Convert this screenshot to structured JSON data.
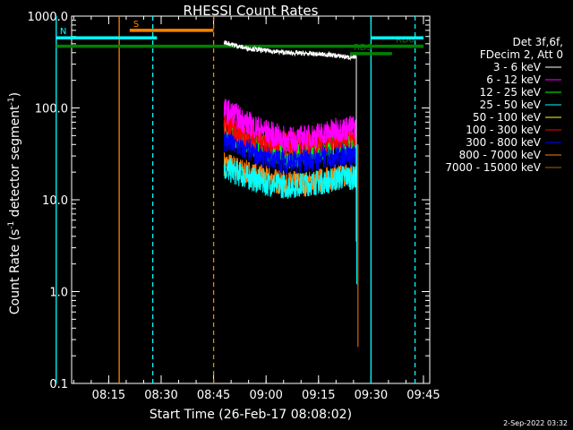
{
  "chart_data": {
    "type": "line",
    "title": "RHESSI Count Rates",
    "xlabel": "Start Time (26-Feb-17 08:08:02)",
    "ylabel_parts": [
      "Count Rate (s",
      "-1",
      " detector segment",
      "-1",
      ")"
    ],
    "ylabel": "Count Rate (s-1 detector segment-1)",
    "yscale": "log",
    "ylim": [
      0.1,
      1000
    ],
    "xlim_min": [
      8.0,
      9.75
    ],
    "yticks": [
      "0.1",
      "1.0",
      "10.0",
      "100.0",
      "1000.0"
    ],
    "xticks": [
      {
        "label": "08:15",
        "t": 8.25
      },
      {
        "label": "08:30",
        "t": 8.5
      },
      {
        "label": "08:45",
        "t": 8.75
      },
      {
        "label": "09:00",
        "t": 9.0
      },
      {
        "label": "09:15",
        "t": 9.25
      },
      {
        "label": "09:30",
        "t": 9.5
      },
      {
        "label": "09:45",
        "t": 9.75
      }
    ],
    "legend_header": [
      "Det 3f,6f,",
      "FDecim 2, Att 0"
    ],
    "series": [
      {
        "name": "3 - 6 keV",
        "color": "#ffffff",
        "t": [
          8.8,
          8.9,
          9.0,
          9.1,
          9.2,
          9.3,
          9.38,
          9.43
        ],
        "y": [
          520,
          450,
          420,
          400,
          390,
          380,
          360,
          350
        ]
      },
      {
        "name": "6 - 12 keV",
        "color": "#ff00ff",
        "t": [
          8.8,
          8.85,
          8.9,
          9.0,
          9.1,
          9.2,
          9.3,
          9.38,
          9.43
        ],
        "y": [
          95,
          85,
          70,
          55,
          45,
          48,
          55,
          60,
          62
        ]
      },
      {
        "name": "12 - 25 keV",
        "color": "#00ff00",
        "t": [
          8.8,
          8.9,
          9.0,
          9.1,
          9.2,
          9.3,
          9.38,
          9.43
        ],
        "y": [
          55,
          45,
          35,
          30,
          32,
          38,
          42,
          40
        ]
      },
      {
        "name": "25 - 50 keV",
        "color": "#00ffff",
        "t": [
          8.8,
          8.9,
          9.0,
          9.1,
          9.2,
          9.3,
          9.38,
          9.43
        ],
        "y": [
          22,
          18,
          15,
          14,
          15,
          16,
          18,
          17
        ]
      },
      {
        "name": "50 - 100 keV",
        "color": "#ffff00",
        "t": [],
        "y": []
      },
      {
        "name": "100 - 300 keV",
        "color": "#ff0000",
        "t": [
          8.8,
          8.85,
          8.9,
          9.0,
          9.1,
          9.2,
          9.3,
          9.38,
          9.43
        ],
        "y": [
          70,
          60,
          52,
          45,
          40,
          42,
          46,
          50,
          48
        ]
      },
      {
        "name": "300 - 800 keV",
        "color": "#0000ff",
        "t": [
          8.8,
          8.9,
          9.0,
          9.1,
          9.2,
          9.3,
          9.38,
          9.43
        ],
        "y": [
          45,
          36,
          30,
          26,
          27,
          30,
          32,
          30
        ]
      },
      {
        "name": "800 - 7000 keV",
        "color": "#ff8000",
        "t": [
          8.8,
          8.9,
          9.0,
          9.1,
          9.2,
          9.3,
          9.38,
          9.43
        ],
        "y": [
          25,
          20,
          17,
          15,
          15,
          17,
          19,
          18
        ]
      },
      {
        "name": "7000 - 15000 keV",
        "color": "#b06000",
        "t": [],
        "y": []
      }
    ],
    "flag_bars": [
      {
        "label": "S",
        "color": "#ff8000",
        "t_start": 8.35,
        "t_end": 8.75,
        "y": 700
      },
      {
        "label": "N",
        "color": "#00ffff",
        "t_start": 8.0,
        "t_end": 8.48,
        "y": 580
      },
      {
        "label": "",
        "color": "#008000",
        "t_start": 8.0,
        "t_end": 9.75,
        "y": 470
      },
      {
        "label": "RD0",
        "color": "#008000",
        "t_start": 9.6,
        "t_end": 9.75,
        "y": 470
      },
      {
        "label": "RDS",
        "color": "#008000",
        "t_start": 9.4,
        "t_end": 9.6,
        "y": 390
      },
      {
        "label": "",
        "color": "#00ffff",
        "t_start": 9.5,
        "t_end": 9.75,
        "y": 580
      }
    ],
    "vlines": [
      {
        "t": 8.0,
        "color": "#00ffff",
        "dash": false
      },
      {
        "t": 8.3,
        "color": "#ff8000",
        "dash": false
      },
      {
        "t": 8.46,
        "color": "#00ffff",
        "dash": true
      },
      {
        "t": 8.75,
        "color": "#ff8000",
        "dash": true
      },
      {
        "t": 9.5,
        "color": "#00ffff",
        "dash": false
      },
      {
        "t": 9.71,
        "color": "#00ffff",
        "dash": true
      }
    ]
  },
  "footer_date": "2-Sep-2022 03:32"
}
